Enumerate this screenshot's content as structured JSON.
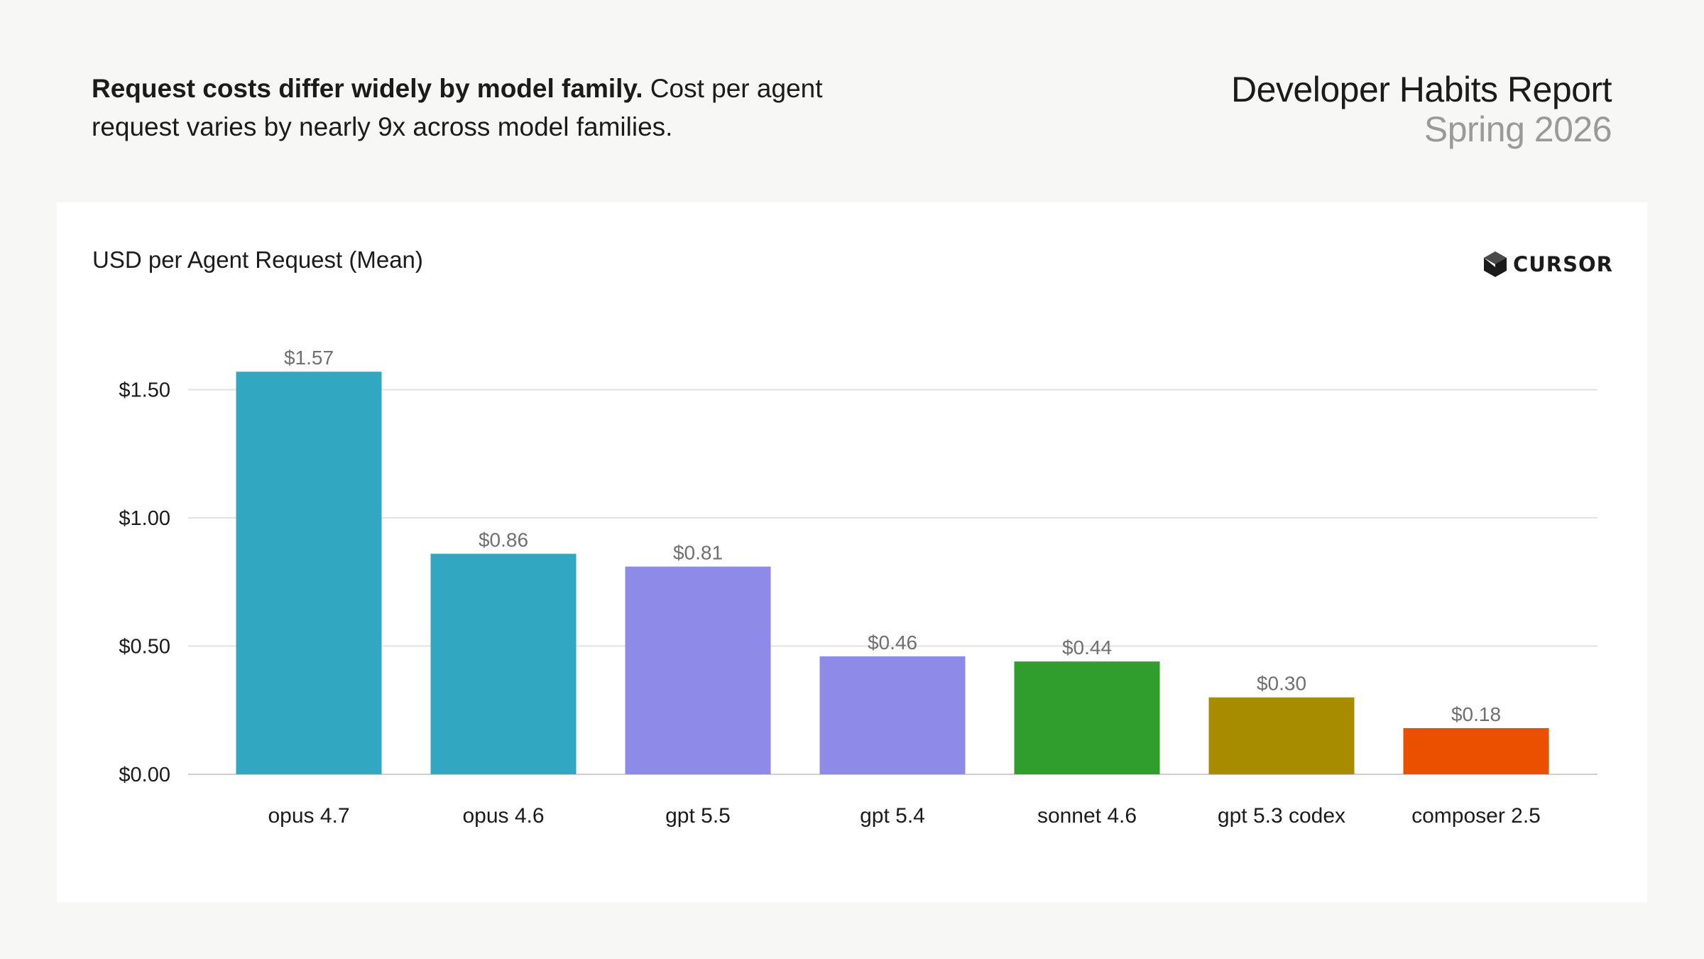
{
  "header": {
    "headline_bold": "Request costs differ widely by model family.",
    "headline_rest": " Cost per agent request varies by nearly 9x across model families.",
    "report_title": "Developer Habits Report",
    "report_subtitle": "Spring 2026"
  },
  "logo": {
    "text": "CURSOR",
    "icon": "cursor-logo-icon"
  },
  "chart_data": {
    "type": "bar",
    "title": "USD per Agent Request (Mean)",
    "xlabel": "",
    "ylabel": "",
    "ylim": [
      0,
      1.7
    ],
    "yticks": [
      0,
      0.5,
      1.0,
      1.5
    ],
    "ytick_labels": [
      "$0.00",
      "$0.50",
      "$1.00",
      "$1.50"
    ],
    "grid": true,
    "categories": [
      "opus 4.7",
      "opus 4.6",
      "gpt 5.5",
      "gpt 5.4",
      "sonnet 4.6",
      "gpt 5.3 codex",
      "composer 2.5"
    ],
    "values": [
      1.57,
      0.86,
      0.81,
      0.46,
      0.44,
      0.3,
      0.18
    ],
    "value_labels": [
      "$1.57",
      "$0.86",
      "$0.81",
      "$0.46",
      "$0.44",
      "$0.30",
      "$0.18"
    ],
    "colors": [
      "#31a7c1",
      "#31a7c1",
      "#8e8be8",
      "#8e8be8",
      "#2f9e2c",
      "#a88c00",
      "#ea5000"
    ]
  }
}
